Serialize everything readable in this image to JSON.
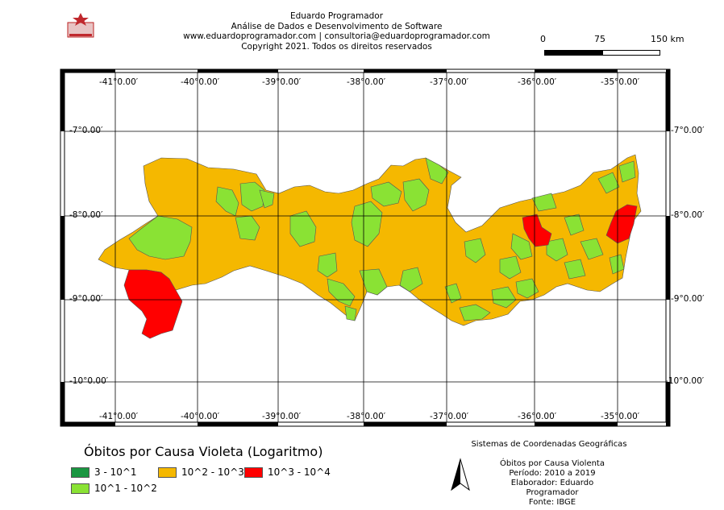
{
  "header": {
    "lines": [
      "Eduardo Programador",
      "Análise de Dados e Desenvolvimento de Software",
      "www.eduardoprogramador.com | consultoria@eduardoprogramador.com",
      "Copyright 2021. Todos os direitos reservados"
    ]
  },
  "scale_bar": {
    "labels": [
      "0",
      "75",
      "150 km"
    ]
  },
  "map": {
    "longitude_labels": [
      "-41°0.00′",
      "-40°0.00′",
      "-39°0.00′",
      "-38°0.00′",
      "-37°0.00′",
      "-36°0.00′",
      "-35°0.00′"
    ],
    "latitude_labels": [
      "-7°0.00′",
      "-8°0.00′",
      "-9°0.00′",
      "-10°0.00′"
    ],
    "colors": {
      "class_1": "#1a9641",
      "class_2": "#8ae234",
      "class_3": "#f5b800",
      "class_4": "#ff0000",
      "frame": "#000000"
    }
  },
  "legend": {
    "title": "Óbitos por Causa Violeta (Logaritmo)",
    "items": [
      {
        "label": "3 - 10^1",
        "color": "#1a9641"
      },
      {
        "label": "10^2 - 10^3",
        "color": "#f5b800"
      },
      {
        "label": "10^3 - 10^4",
        "color": "#ff0000"
      },
      {
        "label": "10^1 - 10^2",
        "color": "#8ae234"
      }
    ]
  },
  "footer": {
    "crs": "Sistemas de Coordenadas Geográficas",
    "info": [
      "Óbitos por Causa Violenta",
      "Período: 2010 a 2019",
      "Elaborador: Eduardo Programador",
      "Fonte: IBGE"
    ]
  }
}
